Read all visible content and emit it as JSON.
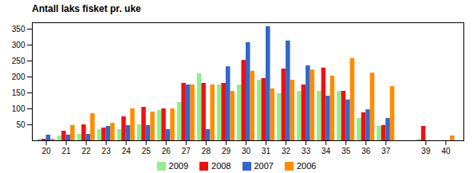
{
  "chart_data": {
    "type": "bar",
    "title": "Antall laks fisket pr. uke",
    "x": [
      20,
      21,
      22,
      23,
      24,
      25,
      26,
      27,
      28,
      29,
      30,
      31,
      32,
      33,
      34,
      35,
      36,
      37,
      39,
      40
    ],
    "xlim": [
      19.3,
      40.9
    ],
    "xticks": [
      20,
      21,
      22,
      23,
      24,
      25,
      26,
      27,
      28,
      29,
      30,
      31,
      32,
      33,
      34,
      35,
      36,
      37,
      39,
      40
    ],
    "ylim": [
      0,
      370
    ],
    "yticks": [
      50,
      100,
      150,
      200,
      250,
      300,
      350
    ],
    "grid": false,
    "legend": "bottom",
    "series": [
      {
        "name": "2009",
        "color": "#90EE90",
        "values": [
          5,
          15,
          20,
          35,
          35,
          50,
          95,
          120,
          210,
          175,
          175,
          190,
          148,
          155,
          155,
          155,
          70,
          45,
          5,
          0
        ]
      },
      {
        "name": "2008",
        "color": "#EE1111",
        "values": [
          5,
          30,
          50,
          40,
          75,
          105,
          100,
          180,
          180,
          180,
          252,
          195,
          225,
          175,
          228,
          155,
          88,
          48,
          45,
          0
        ]
      },
      {
        "name": "2007",
        "color": "#3366CC",
        "values": [
          18,
          18,
          20,
          45,
          48,
          48,
          35,
          175,
          35,
          232,
          308,
          358,
          313,
          235,
          140,
          128,
          97,
          70,
          0,
          0
        ]
      },
      {
        "name": "2006",
        "color": "#FF8C00",
        "values": [
          5,
          48,
          85,
          55,
          100,
          90,
          100,
          175,
          175,
          155,
          218,
          163,
          190,
          222,
          203,
          258,
          212,
          170,
          0,
          15
        ]
      }
    ]
  }
}
